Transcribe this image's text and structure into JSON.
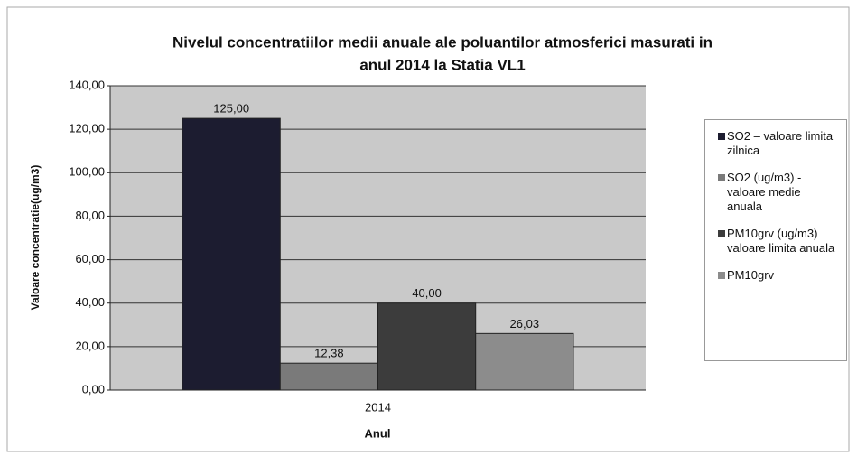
{
  "chart_data": {
    "type": "bar",
    "title": [
      "Nivelul concentratiilor medii anuale ale poluantilor atmosferici masurati in",
      "anul 2014 la Statia VL1"
    ],
    "y_label": "Valoare concentratie(ug/m3)",
    "x_label": "Anul",
    "categories": [
      "2014"
    ],
    "series": [
      {
        "name": "SO2 – valoare limita zilnica",
        "color": "#1c1c30",
        "values": [
          125
        ],
        "value_labels": [
          "125,00"
        ]
      },
      {
        "name": "SO2 (ug/m3) - valoare medie anuala",
        "color": "#7a7a7a",
        "values": [
          12.38
        ],
        "value_labels": [
          "12,38"
        ]
      },
      {
        "name": "PM10grv (ug/m3) valoare limita anuala",
        "color": "#3c3c3c",
        "values": [
          40
        ],
        "value_labels": [
          "40,00"
        ]
      },
      {
        "name": "PM10grv",
        "color": "#8c8c8c",
        "values": [
          26.03
        ],
        "value_labels": [
          "26,03"
        ]
      }
    ],
    "ylim": [
      0,
      140
    ],
    "yticks": [
      {
        "value": 0,
        "label": "0,00"
      },
      {
        "value": 20,
        "label": "20,00"
      },
      {
        "value": 40,
        "label": "40,00"
      },
      {
        "value": 60,
        "label": "60,00"
      },
      {
        "value": 80,
        "label": "80,00"
      },
      {
        "value": 100,
        "label": "100,00"
      },
      {
        "value": 120,
        "label": "120,00"
      },
      {
        "value": 140,
        "label": "140,00"
      }
    ],
    "grid": true,
    "legend": "right"
  }
}
